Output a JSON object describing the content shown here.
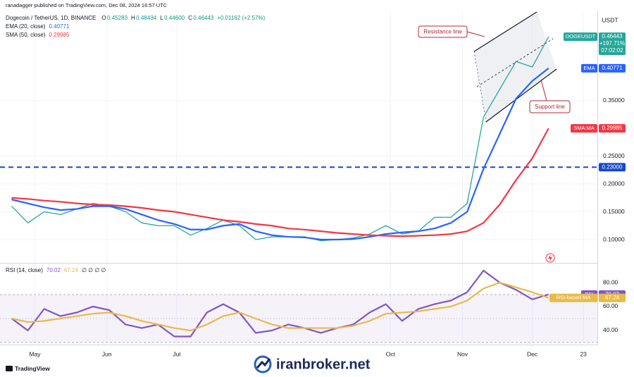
{
  "header": {
    "published": "ranadagger published on TradingView.com, Dec 08, 2024 16:57 UTC",
    "symbol": "Dogecoin / TetherUS, 1D, BINANCE",
    "ohlc": [
      [
        "O",
        "0.45283"
      ],
      [
        "H",
        "0.48434"
      ],
      [
        "L",
        "0.44600"
      ],
      [
        "C",
        "0.46443"
      ]
    ],
    "change": "+0.01162 (+2.57%)",
    "currency": "USDT"
  },
  "chart_data": [
    {
      "type": "line",
      "x": [
        7,
        14,
        21,
        28,
        35,
        42,
        49,
        56,
        63,
        70,
        77,
        84,
        91,
        98,
        105,
        112,
        119,
        126,
        133,
        140,
        147,
        154,
        161,
        168,
        175,
        182,
        189,
        196,
        203,
        210,
        217,
        224,
        231,
        238
      ],
      "xlim": [
        2,
        259
      ],
      "xticks": [
        {
          "value": 17,
          "label": "May"
        },
        {
          "value": 48,
          "label": "Jun"
        },
        {
          "value": 78,
          "label": "Jul"
        },
        {
          "value": 170,
          "label": "Oct"
        },
        {
          "value": 201,
          "label": "Nov"
        },
        {
          "value": 231,
          "label": "Dec"
        },
        {
          "value": 253,
          "label": "23"
        }
      ],
      "ylim": [
        0.0595,
        0.5114
      ],
      "yticks": [
        {
          "value": 0.1,
          "label": "0.10000"
        },
        {
          "value": 0.15,
          "label": "0.15000"
        },
        {
          "value": 0.2,
          "label": "0.20000"
        },
        {
          "value": 0.25,
          "label": "0.25000"
        },
        {
          "value": 0.35,
          "label": "0.35000"
        }
      ],
      "grid": true,
      "hline": {
        "value": 0.23,
        "label": "0.23000",
        "color": "#1848cc"
      },
      "annotations": [
        "Resistance line",
        "Support line"
      ],
      "series": [
        {
          "name": "DOGEUSDT",
          "color": "#26a69a",
          "tag_lines": [
            "+197.71%",
            "07:02:02"
          ],
          "values": [
            0.16,
            0.13,
            0.15,
            0.145,
            0.155,
            0.165,
            0.16,
            0.15,
            0.13,
            0.125,
            0.125,
            0.108,
            0.12,
            0.135,
            0.125,
            0.1,
            0.105,
            0.105,
            0.105,
            0.098,
            0.1,
            0.103,
            0.11,
            0.125,
            0.11,
            0.115,
            0.14,
            0.14,
            0.165,
            0.32,
            0.37,
            0.42,
            0.41,
            0.46443
          ]
        },
        {
          "name": "EMA (20, close)",
          "tag": "EMA",
          "color": "#2962ff",
          "values": [
            0.172,
            0.165,
            0.158,
            0.153,
            0.155,
            0.16,
            0.16,
            0.155,
            0.145,
            0.135,
            0.128,
            0.118,
            0.118,
            0.125,
            0.128,
            0.115,
            0.108,
            0.105,
            0.104,
            0.1,
            0.1,
            0.101,
            0.105,
            0.11,
            0.113,
            0.115,
            0.12,
            0.13,
            0.15,
            0.227,
            0.29,
            0.353,
            0.385,
            0.40771
          ]
        },
        {
          "name": "SMA (50, close)",
          "tag": "SMA:MA",
          "color": "#f23645",
          "values": [
            0.175,
            0.173,
            0.17,
            0.168,
            0.165,
            0.163,
            0.162,
            0.16,
            0.157,
            0.153,
            0.15,
            0.145,
            0.14,
            0.135,
            0.132,
            0.128,
            0.125,
            0.12,
            0.118,
            0.115,
            0.112,
            0.11,
            0.108,
            0.107,
            0.106,
            0.107,
            0.108,
            0.11,
            0.115,
            0.13,
            0.163,
            0.207,
            0.246,
            0.29985
          ]
        }
      ]
    },
    {
      "type": "line",
      "title": "RSI (14, close)",
      "extra": "∅ ∅ ∅ ∅",
      "ylim": [
        29.4,
        95.3
      ],
      "yticks": [
        {
          "value": 80,
          "label": "80.00"
        },
        {
          "value": 60,
          "label": "60.00"
        },
        {
          "value": 40,
          "label": "40.00"
        }
      ],
      "bands": [
        70,
        50,
        30
      ],
      "series": [
        {
          "name": "RSI",
          "color": "#7e57c2",
          "values": [
            50,
            40,
            58,
            52,
            55,
            60,
            57,
            45,
            42,
            45,
            35,
            35,
            55,
            62,
            55,
            38,
            40,
            45,
            42,
            38,
            42,
            45,
            55,
            62,
            48,
            58,
            62,
            65,
            72,
            90,
            80,
            74,
            66,
            70.02
          ]
        },
        {
          "name": "RSI-based MA",
          "color": "#e9b949",
          "values": [
            50,
            47,
            48,
            50,
            52,
            54,
            55,
            52,
            48,
            45,
            42,
            40,
            45,
            52,
            55,
            50,
            45,
            42,
            42,
            42,
            42,
            44,
            48,
            54,
            55,
            56,
            58,
            60,
            65,
            75,
            80,
            76,
            72,
            67.24
          ]
        }
      ]
    }
  ],
  "footer": {
    "brand": "TradingView",
    "watermark": "iranbroker.net"
  }
}
